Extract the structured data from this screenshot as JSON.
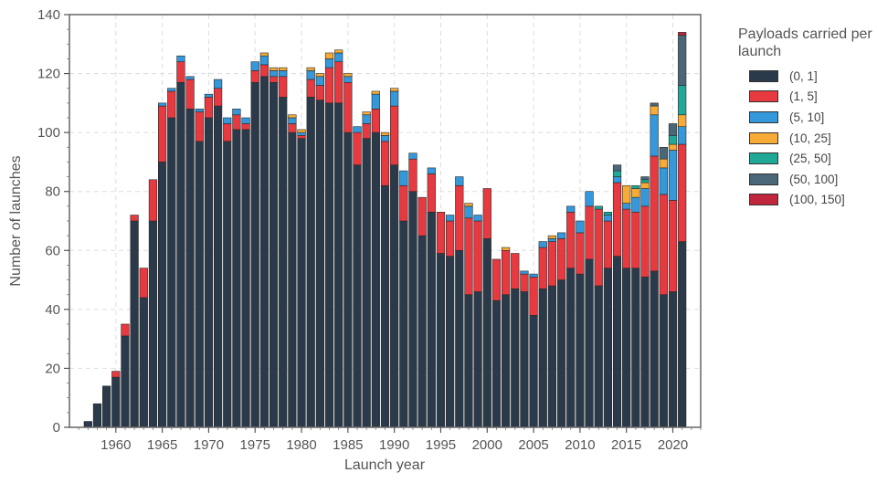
{
  "chart_data": {
    "type": "bar",
    "stacked": true,
    "title": "",
    "xlabel": "Launch year",
    "ylabel": "Number of launches",
    "xlim": [
      1955,
      2023
    ],
    "ylim": [
      0,
      140
    ],
    "xticks": [
      1960,
      1965,
      1970,
      1975,
      1980,
      1985,
      1990,
      1995,
      2000,
      2005,
      2010,
      2015,
      2020
    ],
    "yticks": [
      0,
      20,
      40,
      60,
      80,
      100,
      120,
      140
    ],
    "grid": true,
    "legend_title": "Payloads carried per launch",
    "legend_position": "right",
    "categories": [
      1957,
      1958,
      1959,
      1960,
      1961,
      1962,
      1963,
      1964,
      1965,
      1966,
      1967,
      1968,
      1969,
      1970,
      1971,
      1972,
      1973,
      1974,
      1975,
      1976,
      1977,
      1978,
      1979,
      1980,
      1981,
      1982,
      1983,
      1984,
      1985,
      1986,
      1987,
      1988,
      1989,
      1990,
      1991,
      1992,
      1993,
      1994,
      1995,
      1996,
      1997,
      1998,
      1999,
      2000,
      2001,
      2002,
      2003,
      2004,
      2005,
      2006,
      2007,
      2008,
      2009,
      2010,
      2011,
      2012,
      2013,
      2014,
      2015,
      2016,
      2017,
      2018,
      2019,
      2020,
      2021
    ],
    "series": [
      {
        "name": "(0, 1]",
        "color": "#2b3a4a",
        "values": [
          2,
          8,
          14,
          17,
          31,
          70,
          44,
          70,
          90,
          105,
          117,
          108,
          97,
          105,
          109,
          97,
          101,
          101,
          117,
          119,
          117,
          112,
          100,
          98,
          112,
          111,
          110,
          110,
          100,
          89,
          98,
          100,
          82,
          89,
          70,
          80,
          65,
          73,
          59,
          58,
          60,
          45,
          46,
          64,
          43,
          45,
          47,
          46,
          38,
          47,
          48,
          50,
          54,
          52,
          57,
          48,
          54,
          58,
          54,
          54,
          51,
          53,
          45,
          46,
          63
        ]
      },
      {
        "name": "(1, 5]",
        "color": "#e63940",
        "values": [
          0,
          0,
          0,
          2,
          4,
          2,
          10,
          14,
          19,
          9,
          7,
          10,
          10,
          7,
          6,
          6,
          5,
          2,
          4,
          4,
          2,
          7,
          3,
          1,
          6,
          5,
          12,
          14,
          17,
          11,
          5,
          8,
          15,
          20,
          12,
          11,
          13,
          13,
          14,
          12,
          22,
          26,
          24,
          17,
          14,
          15,
          12,
          6,
          13,
          14,
          15,
          14,
          19,
          14,
          18,
          26,
          16,
          25,
          20,
          19,
          24,
          39,
          34,
          31,
          33
        ]
      },
      {
        "name": "(5, 10]",
        "color": "#3498db",
        "values": [
          0,
          0,
          0,
          0,
          0,
          0,
          0,
          0,
          1,
          1,
          2,
          1,
          1,
          1,
          3,
          2,
          2,
          2,
          3,
          3,
          2,
          2,
          2,
          1,
          3,
          3,
          3,
          3,
          2,
          2,
          3,
          5,
          2,
          5,
          5,
          2,
          0,
          2,
          0,
          2,
          3,
          4,
          2,
          0,
          0,
          0,
          0,
          1,
          1,
          2,
          1,
          2,
          2,
          4,
          5,
          0,
          2,
          2,
          2,
          5,
          6,
          14,
          9,
          17,
          6
        ]
      },
      {
        "name": "(10, 25]",
        "color": "#f5ab35",
        "values": [
          0,
          0,
          0,
          0,
          0,
          0,
          0,
          0,
          0,
          0,
          0,
          0,
          0,
          0,
          0,
          0,
          0,
          0,
          0,
          1,
          1,
          1,
          1,
          1,
          1,
          1,
          2,
          1,
          1,
          0,
          1,
          1,
          1,
          1,
          0,
          0,
          0,
          0,
          0,
          0,
          0,
          1,
          0,
          0,
          0,
          1,
          0,
          0,
          0,
          0,
          1,
          0,
          0,
          0,
          0,
          0,
          0,
          0,
          6,
          3,
          2,
          3,
          3,
          2,
          4
        ]
      },
      {
        "name": "(25, 50]",
        "color": "#1fa996",
        "values": [
          0,
          0,
          0,
          0,
          0,
          0,
          0,
          0,
          0,
          0,
          0,
          0,
          0,
          0,
          0,
          0,
          0,
          0,
          0,
          0,
          0,
          0,
          0,
          0,
          0,
          0,
          0,
          0,
          0,
          0,
          0,
          0,
          0,
          0,
          0,
          0,
          0,
          0,
          0,
          0,
          0,
          0,
          0,
          0,
          0,
          0,
          0,
          0,
          0,
          0,
          0,
          0,
          0,
          0,
          0,
          1,
          1,
          2,
          0,
          1,
          1,
          0,
          0,
          3,
          10
        ]
      },
      {
        "name": "(50, 100]",
        "color": "#4a6778",
        "values": [
          0,
          0,
          0,
          0,
          0,
          0,
          0,
          0,
          0,
          0,
          0,
          0,
          0,
          0,
          0,
          0,
          0,
          0,
          0,
          0,
          0,
          0,
          0,
          0,
          0,
          0,
          0,
          0,
          0,
          0,
          0,
          0,
          0,
          0,
          0,
          0,
          0,
          0,
          0,
          0,
          0,
          0,
          0,
          0,
          0,
          0,
          0,
          0,
          0,
          0,
          0,
          0,
          0,
          0,
          0,
          0,
          0,
          2,
          0,
          0,
          1,
          1,
          4,
          4,
          17
        ]
      },
      {
        "name": "(100, 150]",
        "color": "#c0263c",
        "values": [
          0,
          0,
          0,
          0,
          0,
          0,
          0,
          0,
          0,
          0,
          0,
          0,
          0,
          0,
          0,
          0,
          0,
          0,
          0,
          0,
          0,
          0,
          0,
          0,
          0,
          0,
          0,
          0,
          0,
          0,
          0,
          0,
          0,
          0,
          0,
          0,
          0,
          0,
          0,
          0,
          0,
          0,
          0,
          0,
          0,
          0,
          0,
          0,
          0,
          0,
          0,
          0,
          0,
          0,
          0,
          0,
          0,
          0,
          0,
          0,
          0,
          0,
          0,
          0,
          1
        ]
      }
    ]
  }
}
